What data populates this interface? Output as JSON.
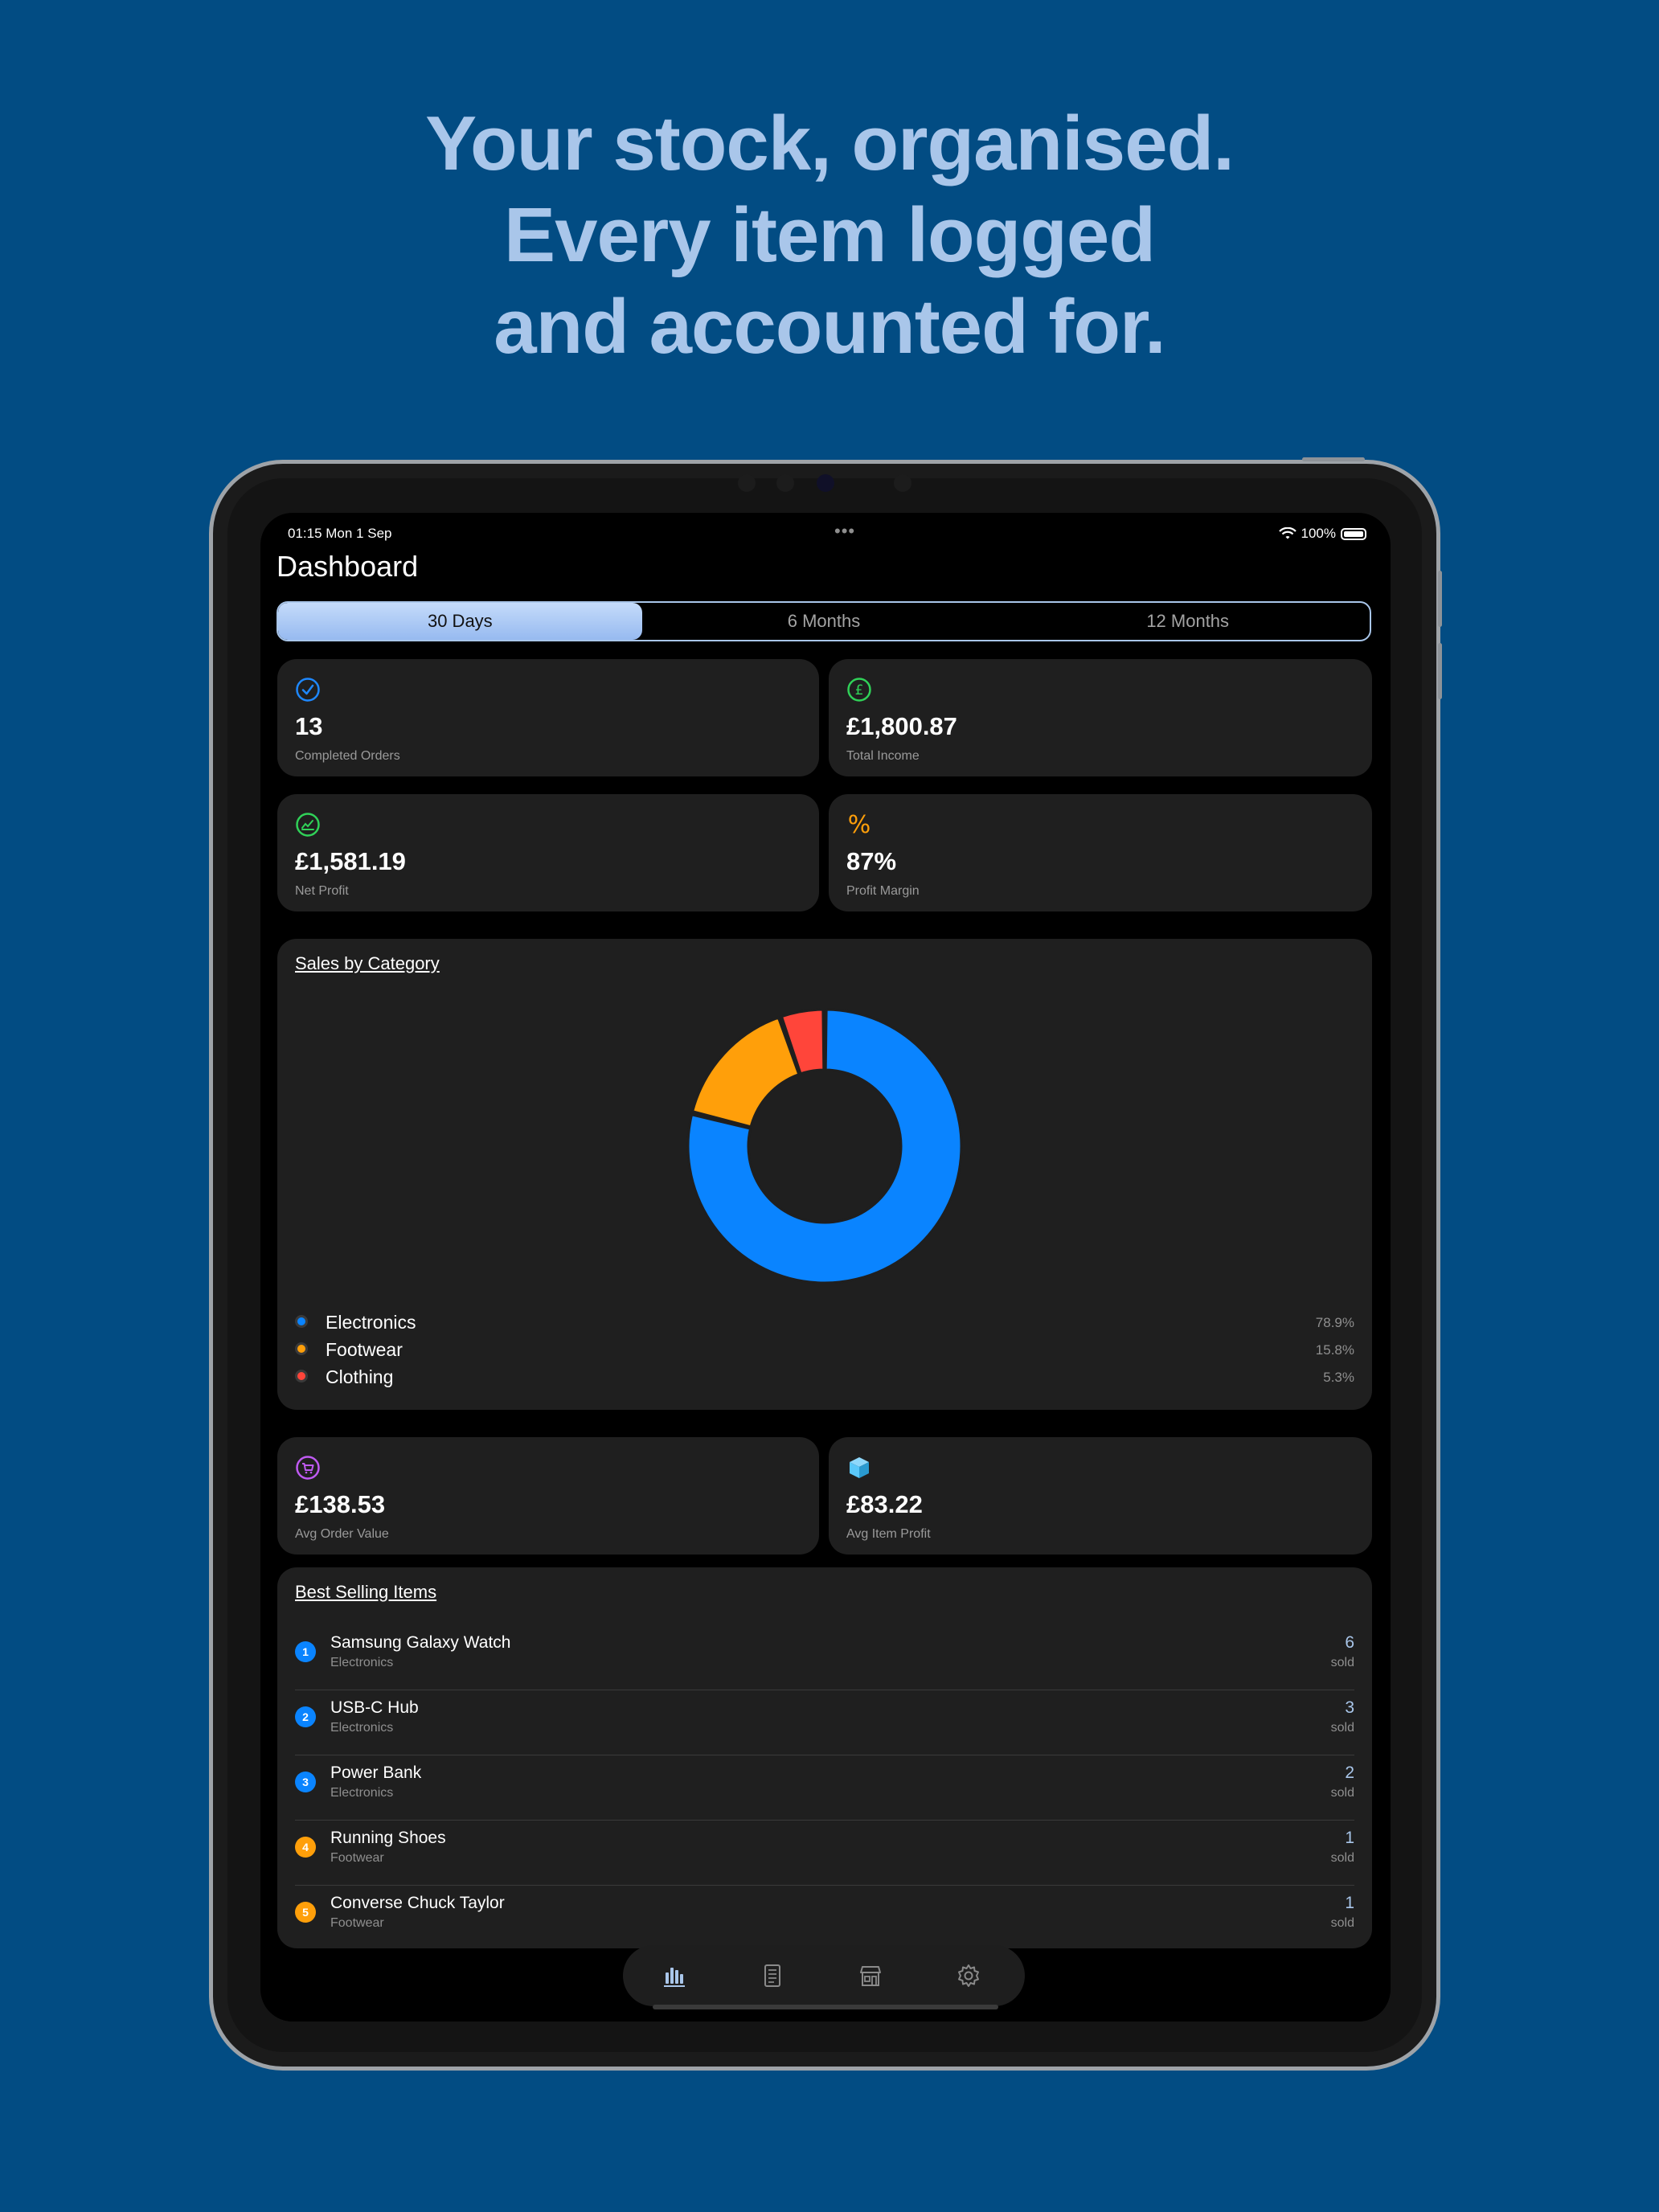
{
  "marketing": {
    "line1": "Your stock, organised.",
    "line2": "Every item logged",
    "line3": "and accounted for."
  },
  "status_bar": {
    "time": "01:15  Mon 1 Sep",
    "more": "•••",
    "battery": "100%"
  },
  "page_title": "Dashboard",
  "periods": [
    {
      "label": "30 Days",
      "selected": true
    },
    {
      "label": "6 Months",
      "selected": false
    },
    {
      "label": "12 Months",
      "selected": false
    }
  ],
  "stats": [
    {
      "icon": "checkmark-circle-icon",
      "value": "13",
      "label": "Completed Orders",
      "color": "#1e88ff"
    },
    {
      "icon": "pound-circle-icon",
      "value": "£1,800.87",
      "label": "Total Income",
      "color": "#30d158"
    },
    {
      "icon": "trend-chart-icon",
      "value": "£1,581.19",
      "label": "Net Profit",
      "color": "#30d158"
    },
    {
      "icon": "percent-icon",
      "value": "87%",
      "label": "Profit Margin",
      "color": "#ff9f0a"
    },
    {
      "icon": "cart-circle-icon",
      "value": "£138.53",
      "label": "Avg Order Value",
      "color": "#bf5af2"
    },
    {
      "icon": "cube-icon",
      "value": "£83.22",
      "label": "Avg Item Profit",
      "color": "#5ac8fa"
    }
  ],
  "sales_by_category": {
    "title": "Sales by Category",
    "chart_data": {
      "type": "pie",
      "categories": [
        "Electronics",
        "Footwear",
        "Clothing"
      ],
      "values": [
        78.9,
        15.8,
        5.3
      ],
      "value_labels": [
        "78.9%",
        "15.8%",
        "5.3%"
      ],
      "colors": [
        "#0a84ff",
        "#ff9f0a",
        "#ff453a"
      ],
      "donut": true
    }
  },
  "best_selling": {
    "title": "Best Selling Items",
    "sold_label": "sold",
    "items": [
      {
        "rank": "1",
        "name": "Samsung Galaxy Watch",
        "category": "Electronics",
        "count": "6",
        "color": "#0a84ff"
      },
      {
        "rank": "2",
        "name": "USB-C Hub",
        "category": "Electronics",
        "count": "3",
        "color": "#0a84ff"
      },
      {
        "rank": "3",
        "name": "Power Bank",
        "category": "Electronics",
        "count": "2",
        "color": "#0a84ff"
      },
      {
        "rank": "4",
        "name": "Running Shoes",
        "category": "Footwear",
        "count": "1",
        "color": "#ff9f0a"
      },
      {
        "rank": "5",
        "name": "Converse Chuck Taylor",
        "category": "Footwear",
        "count": "1",
        "color": "#ff9f0a"
      }
    ]
  },
  "tab_bar": [
    {
      "icon": "bar-chart-icon",
      "selected": true
    },
    {
      "icon": "document-list-icon",
      "selected": false
    },
    {
      "icon": "storefront-icon",
      "selected": false
    },
    {
      "icon": "gear-icon",
      "selected": false
    }
  ]
}
